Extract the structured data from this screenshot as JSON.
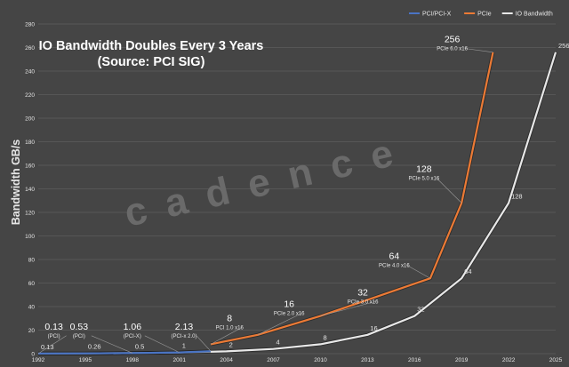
{
  "chart_data": {
    "type": "line",
    "title_line1": "IO Bandwidth Doubles Every 3 Years",
    "title_line2": "(Source: PCI SIG)",
    "ylabel": "Bandwidth GB/s",
    "xlabel": "",
    "watermark": "cadence",
    "xlim": [
      1992,
      2025
    ],
    "ylim": [
      0,
      280
    ],
    "y_ticks": [
      0,
      20,
      40,
      60,
      80,
      100,
      120,
      140,
      160,
      180,
      200,
      220,
      240,
      260,
      280
    ],
    "x_ticks": [
      1992,
      1995,
      1998,
      2001,
      2004,
      2007,
      2010,
      2013,
      2016,
      2019,
      2022,
      2025
    ],
    "grid": true,
    "legend_position": "top-right",
    "colors": {
      "background": "#454545",
      "grid": "#5c5c5c",
      "text": "#e6e6e6",
      "pci": "#4a74c4",
      "pcie": "#ec7a35",
      "io": "#e8e8e8"
    },
    "series": [
      {
        "name": "PCI/PCI-X",
        "color": "#4a74c4",
        "points": [
          {
            "x": 1992,
            "y": 0.13
          },
          {
            "x": 1995,
            "y": 0.26
          },
          {
            "x": 1998,
            "y": 0.53
          },
          {
            "x": 2001,
            "y": 1.06
          },
          {
            "x": 2003,
            "y": 2.13
          }
        ]
      },
      {
        "name": "PCIe",
        "color": "#ec7a35",
        "points": [
          {
            "x": 2003,
            "y": 8
          },
          {
            "x": 2006,
            "y": 16
          },
          {
            "x": 2010,
            "y": 32
          },
          {
            "x": 2017,
            "y": 64
          },
          {
            "x": 2019,
            "y": 128
          },
          {
            "x": 2021,
            "y": 256
          }
        ]
      },
      {
        "name": "IO Bandwidth",
        "color": "#e8e8e8",
        "points": [
          {
            "x": 1992,
            "y": 0.13
          },
          {
            "x": 1995,
            "y": 0.26
          },
          {
            "x": 1998,
            "y": 0.5
          },
          {
            "x": 2001,
            "y": 1
          },
          {
            "x": 2004,
            "y": 2
          },
          {
            "x": 2007,
            "y": 4
          },
          {
            "x": 2010,
            "y": 8
          },
          {
            "x": 2013,
            "y": 16
          },
          {
            "x": 2016,
            "y": 32
          },
          {
            "x": 2019,
            "y": 64
          },
          {
            "x": 2022,
            "y": 128
          },
          {
            "x": 2025,
            "y": 256
          }
        ]
      }
    ],
    "io_point_labels": [
      "0.13",
      "0.26",
      "0.5",
      "1",
      "2",
      "4",
      "8",
      "16",
      "32",
      "64",
      "128",
      "256"
    ],
    "annotations": [
      {
        "value": "0.13",
        "sub": "(PCI)",
        "x": 1993.0,
        "y": 16
      },
      {
        "value": "0.53",
        "sub": "(PCI)",
        "x": 1994.6,
        "y": 16
      },
      {
        "value": "1.06",
        "sub": "(PCI-X)",
        "x": 1998.0,
        "y": 16
      },
      {
        "value": "2.13",
        "sub": "(PCI-x 2.0)",
        "x": 2001.3,
        "y": 16
      },
      {
        "value": "8",
        "sub": "PCI 1.0 x16",
        "x": 2004.2,
        "y": 23
      },
      {
        "value": "16",
        "sub": "PCIe 2.0 x16",
        "x": 2008.0,
        "y": 35
      },
      {
        "value": "32",
        "sub": "PCIe 3.0 x16",
        "x": 2012.7,
        "y": 45
      },
      {
        "value": "64",
        "sub": "PCIe 4.0 x16",
        "x": 2014.7,
        "y": 76
      },
      {
        "value": "128",
        "sub": "PCIe 5.0 x16",
        "x": 2016.6,
        "y": 150
      },
      {
        "value": "256",
        "sub": "PCIe 6.0 x16",
        "x": 2018.4,
        "y": 260
      }
    ]
  }
}
